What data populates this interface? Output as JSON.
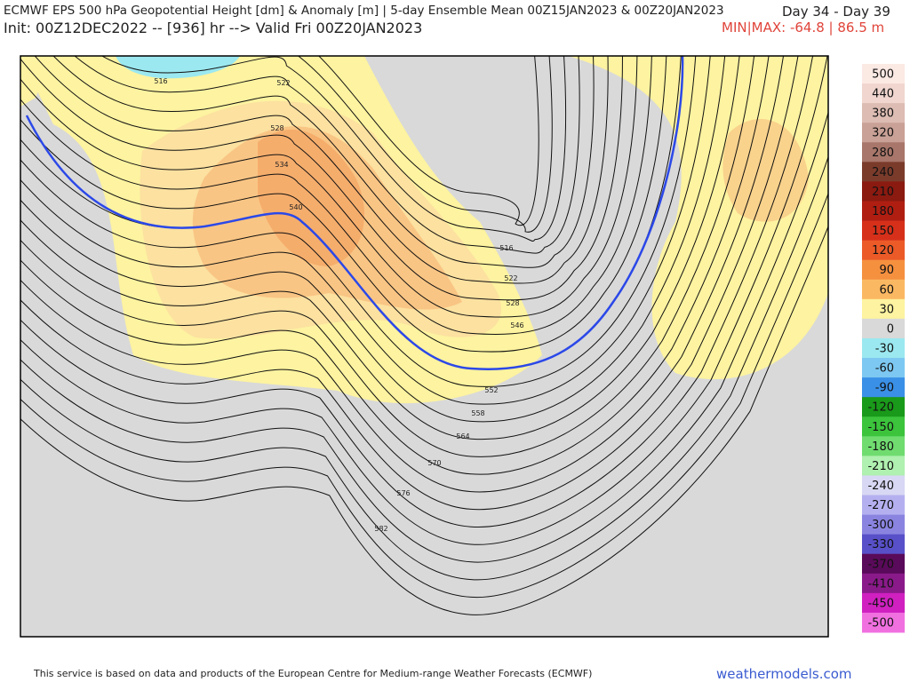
{
  "header": {
    "title": "ECMWF EPS 500 hPa Geopotential Height [dm] & Anomaly [m] | 5-day Ensemble Mean 00Z15JAN2023 & 00Z20JAN2023",
    "days": "Day 34 - Day 39",
    "init": "Init: 00Z12DEC2022 -- [936] hr --> Valid Fri 00Z20JAN2023",
    "minmax": "MIN|MAX: -64.8 | 86.5 m"
  },
  "colorbar": {
    "levels": [
      500,
      440,
      380,
      320,
      280,
      240,
      210,
      180,
      150,
      120,
      90,
      60,
      30,
      0,
      -30,
      -60,
      -90,
      -120,
      -150,
      -180,
      -210,
      -240,
      -270,
      -300,
      -330,
      -370,
      -410,
      -450,
      -500
    ],
    "colors": [
      "#fbe9e4",
      "#f0d6cf",
      "#dcbcb3",
      "#c9a196",
      "#a8766a",
      "#7a3b2b",
      "#8b1a10",
      "#b01e12",
      "#d6301a",
      "#ec5a28",
      "#f5903f",
      "#fbb862",
      "#fdf3a0",
      "#d9d9d9",
      "#9be8f0",
      "#7dc8f2",
      "#3a90e6",
      "#1a9a1a",
      "#3cc43c",
      "#70dc70",
      "#b0f0b0",
      "#d8d8f4",
      "#b4b0f0",
      "#8a84e0",
      "#5850c8",
      "#5a0a5a",
      "#8a1a8a",
      "#d020c0",
      "#f070e0"
    ]
  },
  "contour_labels": [
    "516",
    "522",
    "528",
    "534",
    "540",
    "516",
    "522",
    "528",
    "546",
    "552",
    "558",
    "564",
    "570",
    "576",
    "582"
  ],
  "footer": {
    "credit": "This service is based on data and products of the European Centre for Medium-range Weather Forecasts (ECMWF)",
    "site": "weathermodels.com"
  }
}
